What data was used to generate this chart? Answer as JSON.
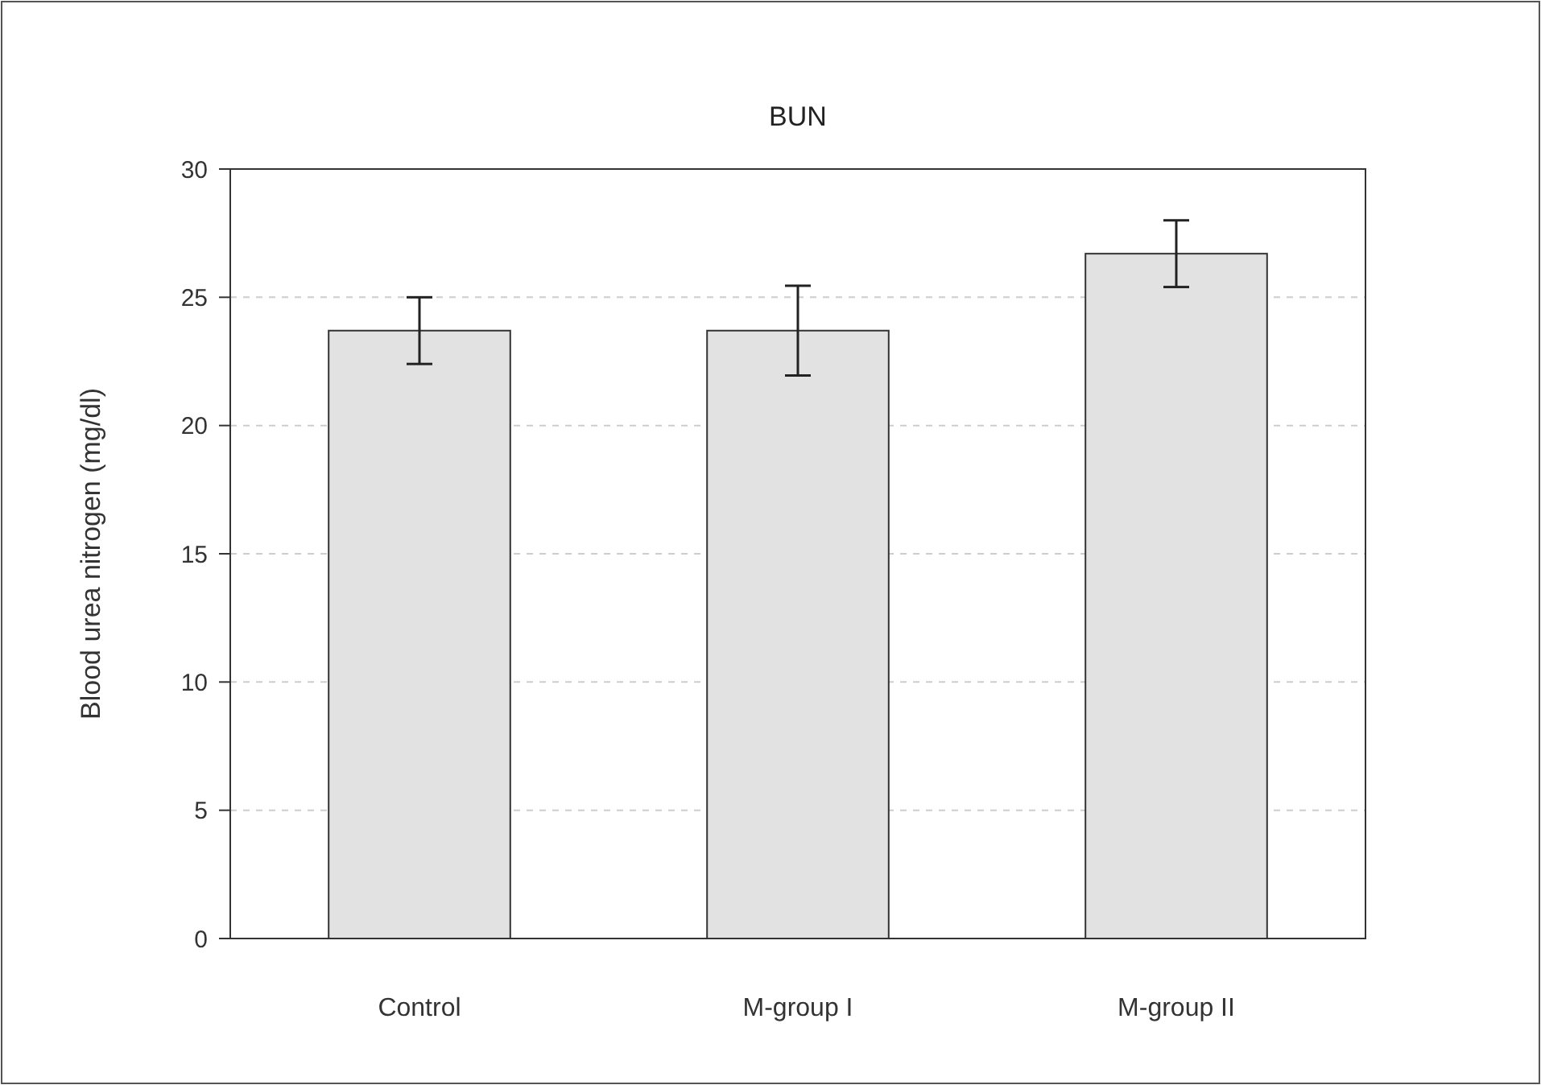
{
  "chart_data": {
    "type": "bar",
    "title": "BUN",
    "ylabel": "Blood urea nitrogen (mg/dl)",
    "categories": [
      "Control",
      "M-group I",
      "M-group II"
    ],
    "values": [
      23.7,
      23.7,
      26.7
    ],
    "errors": [
      1.3,
      1.75,
      1.3
    ],
    "color": "#e2e2e2",
    "ylim": [
      0,
      30
    ],
    "yticks": [
      0,
      5,
      10,
      15,
      20,
      25,
      30
    ],
    "grid": "y"
  }
}
